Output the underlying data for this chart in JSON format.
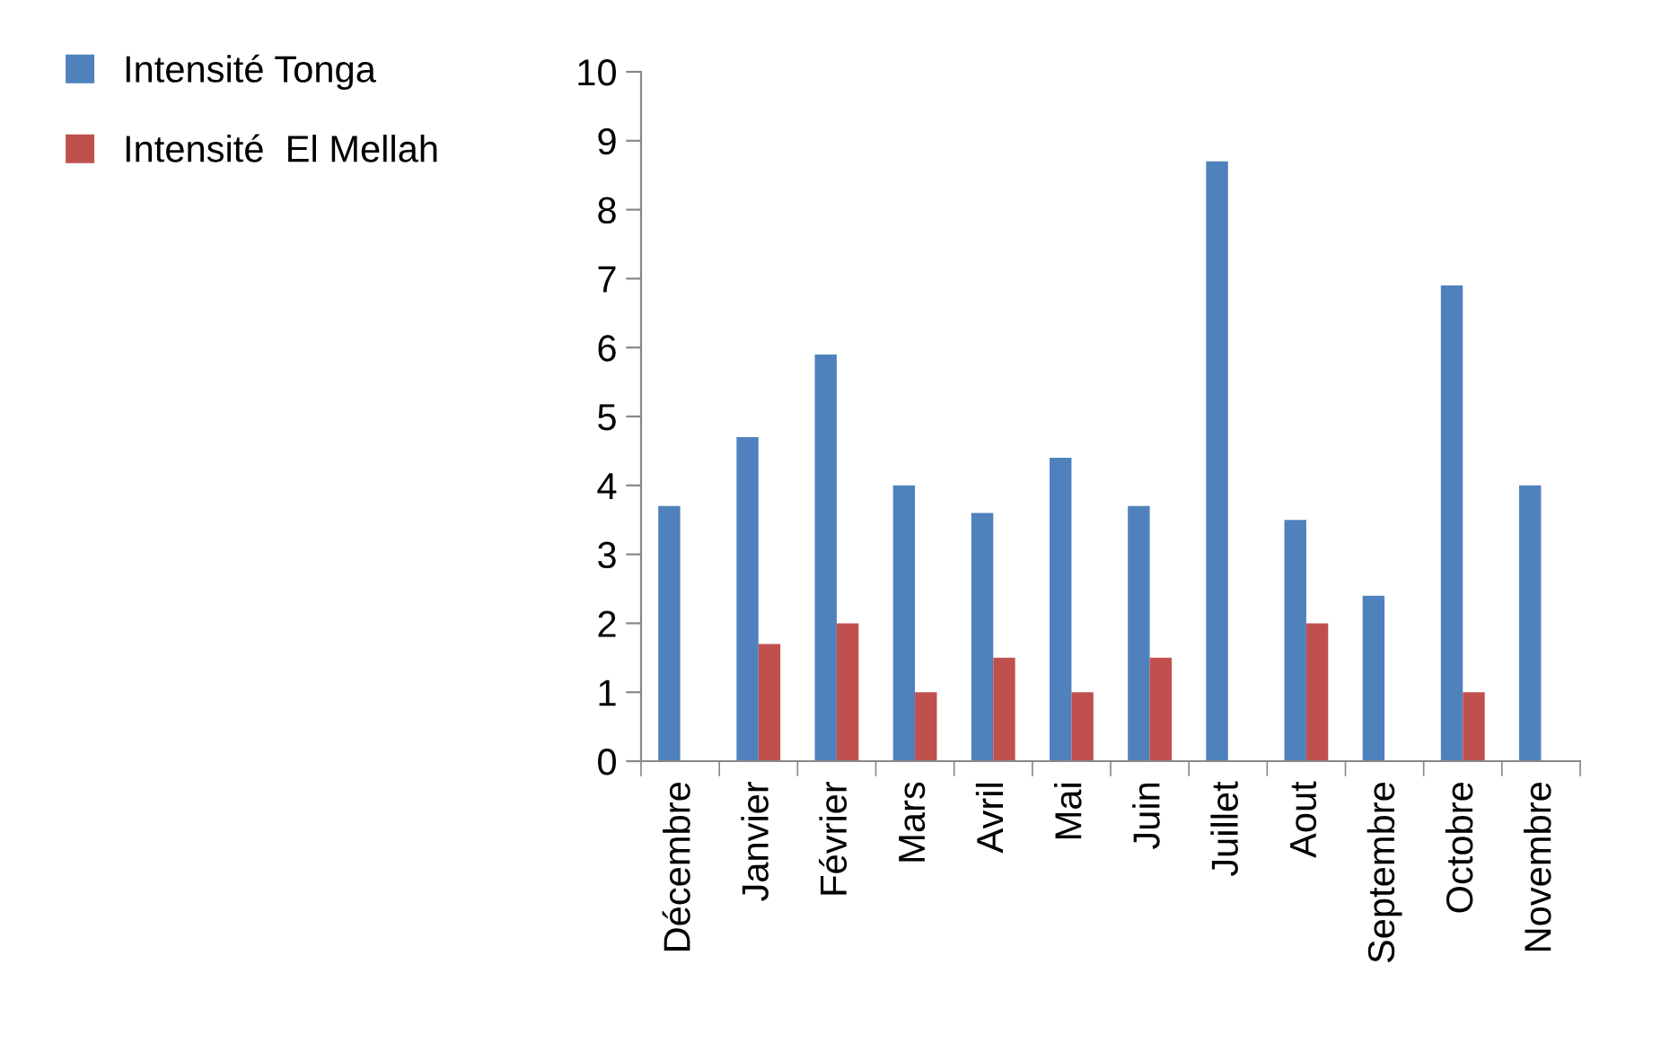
{
  "chart_data": {
    "type": "bar",
    "categories": [
      "Décembre",
      "Janvier",
      "Février",
      "Mars",
      "Avril",
      "Mai",
      "Juin",
      "Juillet",
      "Aout",
      "Septembre",
      "Octobre",
      "Novembre"
    ],
    "series": [
      {
        "name": "Intensité Tonga",
        "color": "#4f81bd",
        "values": [
          3.7,
          4.7,
          5.9,
          4.0,
          3.6,
          4.4,
          3.7,
          8.7,
          3.5,
          2.4,
          6.9,
          4.0
        ]
      },
      {
        "name": "Intensité  El Mellah",
        "color": "#c0504d",
        "values": [
          null,
          1.7,
          2.0,
          1.0,
          1.5,
          1.0,
          1.5,
          null,
          2.0,
          null,
          1.0,
          null
        ]
      }
    ],
    "ylim": [
      0,
      10
    ],
    "yticks": [
      0,
      1,
      2,
      3,
      4,
      5,
      6,
      7,
      8,
      9,
      10
    ],
    "grid": false,
    "legend": "top left"
  }
}
